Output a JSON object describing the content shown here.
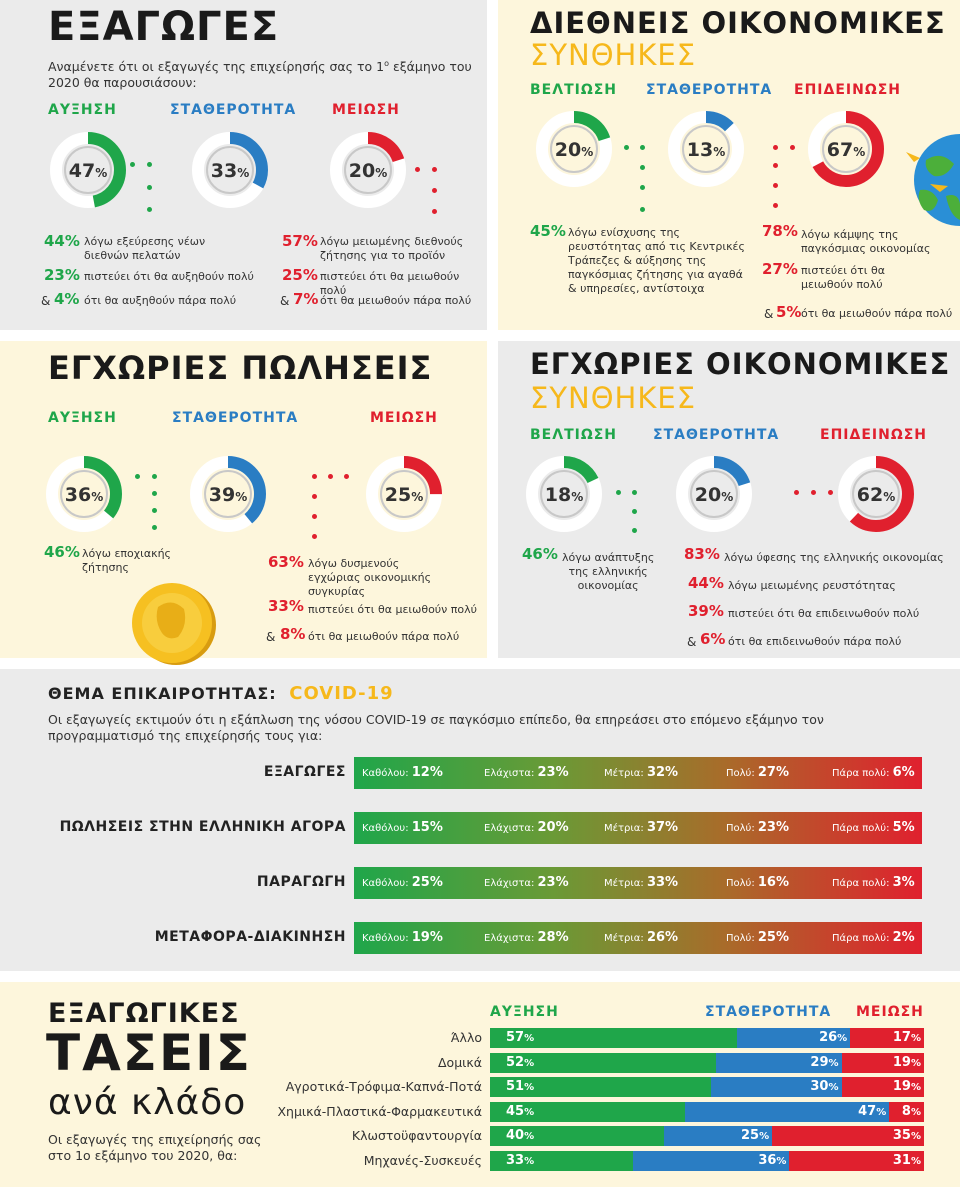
{
  "exports": {
    "title": "ΕΞΑΓΩΓΕΣ",
    "subtitle_line1": "Αναμένετε ότι οι εξαγωγές της επιχείρησής σας το 1",
    "subtitle_sup": "ο",
    "subtitle_line1b": " εξάμηνο του",
    "subtitle_line2": "2020 θα παρουσιάσουν:",
    "cats": [
      {
        "label": "ΑΥΞΗΣΗ",
        "value": "47",
        "pct": 47,
        "color": "#1fa64a"
      },
      {
        "label": "ΣΤΑΘΕΡΟΤΗΤΑ",
        "value": "33",
        "pct": 33,
        "color": "#2a7dc3"
      },
      {
        "label": "ΜΕΙΩΣΗ",
        "value": "20",
        "pct": 20,
        "color": "#e0202e"
      }
    ],
    "left_notes": [
      {
        "pct": "44%",
        "text1": "λόγω εξεύρεσης νέων",
        "text2": "διεθνών πελατών"
      },
      {
        "pct": "23%",
        "text1": "πιστεύει ότι θα αυξηθούν πολύ",
        "text2": ""
      },
      {
        "pct": "4%",
        "amp": "&",
        "text1": "ότι θα αυξηθούν πάρα πολύ",
        "text2": ""
      }
    ],
    "right_notes": [
      {
        "pct": "57%",
        "text1": "λόγω μειωμένης διεθνούς",
        "text2": "ζήτησης για το προϊόν"
      },
      {
        "pct": "25%",
        "text1": "πιστεύει ότι θα μειωθούν πολύ",
        "text2": ""
      },
      {
        "pct": "7%",
        "amp": "&",
        "text1": "ότι θα μειωθούν πάρα πολύ",
        "text2": ""
      }
    ]
  },
  "intl": {
    "title": "ΔΙΕΘΝΕΙΣ ΟΙΚΟΝΟΜΙΚΕΣ",
    "title2": "ΣΥΝΘΗΚΕΣ",
    "cats": [
      {
        "label": "ΒΕΛΤΙΩΣΗ",
        "value": "20",
        "pct": 20,
        "color": "#1fa64a"
      },
      {
        "label": "ΣΤΑΘΕΡΟΤΗΤΑ",
        "value": "13",
        "pct": 13,
        "color": "#2a7dc3"
      },
      {
        "label": "ΕΠΙΔΕΙΝΩΣΗ",
        "value": "67",
        "pct": 67,
        "color": "#e0202e"
      }
    ],
    "left_note": {
      "pct": "45%",
      "lines": [
        "λόγω ενίσχυσης της",
        "ρευστότητας από τις Κεντρικές",
        "Τράπεζες & αύξησης της",
        "παγκόσμιας ζήτησης για αγαθά",
        "& υπηρεσίες, αντίστοιχα"
      ]
    },
    "right_notes": [
      {
        "pct": "78%",
        "text1": "λόγω κάμψης της",
        "text2": "παγκόσμιας οικονομίας"
      },
      {
        "pct": "27%",
        "text1": "πιστεύει ότι θα",
        "text2": "μειωθούν πολύ"
      },
      {
        "pct": "5%",
        "amp": "&",
        "text1": "ότι θα μειωθούν πάρα πολύ",
        "text2": ""
      }
    ]
  },
  "domestic": {
    "title": "ΕΓΧΩΡΙΕΣ ΠΩΛΗΣΕΙΣ",
    "cats": [
      {
        "label": "ΑΥΞΗΣΗ",
        "value": "36",
        "pct": 36,
        "color": "#1fa64a"
      },
      {
        "label": "ΣΤΑΘΕΡΟΤΗΤΑ",
        "value": "39",
        "pct": 39,
        "color": "#2a7dc3"
      },
      {
        "label": "ΜΕΙΩΣΗ",
        "value": "25",
        "pct": 25,
        "color": "#e0202e"
      }
    ],
    "left_note": {
      "pct": "46%",
      "text1": "λόγω εποχιακής",
      "text2": "ζήτησης"
    },
    "right_notes": [
      {
        "pct": "63%",
        "text1": "λόγω δυσμενούς",
        "text2": "εγχώριας οικονομικής συγκυρίας"
      },
      {
        "pct": "33%",
        "text1": "πιστεύει ότι θα μειωθούν πολύ",
        "text2": ""
      },
      {
        "pct": "8%",
        "amp": "&",
        "text1": "ότι θα μειωθούν πάρα πολύ",
        "text2": ""
      }
    ]
  },
  "domestic_econ": {
    "title": "ΕΓΧΩΡΙΕΣ ΟΙΚΟΝΟΜΙΚΕΣ",
    "title2": "ΣΥΝΘΗΚΕΣ",
    "cats": [
      {
        "label": "ΒΕΛΤΙΩΣΗ",
        "value": "18",
        "pct": 18,
        "color": "#1fa64a"
      },
      {
        "label": "ΣΤΑΘΕΡΟΤΗΤΑ",
        "value": "20",
        "pct": 20,
        "color": "#2a7dc3"
      },
      {
        "label": "ΕΠΙΔΕΙΝΩΣΗ",
        "value": "62",
        "pct": 62,
        "color": "#e0202e"
      }
    ],
    "left_note": {
      "pct": "46%",
      "lines": [
        "λόγω ανάπτυξης",
        "της ελληνικής",
        "οικονομίας"
      ]
    },
    "right_notes": [
      {
        "pct": "83%",
        "text1": "λόγω ύφεσης της ελληνικής οικονομίας"
      },
      {
        "pct": "44%",
        "text1": "λόγω μειωμένης ρευστότητας"
      },
      {
        "pct": "39%",
        "text1": "πιστεύει ότι θα επιδεινωθούν πολύ"
      },
      {
        "pct": "6%",
        "amp": "&",
        "text1": "ότι θα επιδεινωθούν πάρα πολύ"
      }
    ]
  },
  "covid": {
    "heading": "ΘΕΜΑ ΕΠΙΚΑΙΡΟΤΗΤΑΣ:",
    "heading2": "COVID-19",
    "desc1": "Οι εξαγωγείς εκτιμούν ότι η εξάπλωση της νόσου COVID-19 σε παγκόσμιο επίπεδο, θα επηρεάσει στο επόμενο εξάμηνο τον",
    "desc2": "προγραμματισμό της επιχείρησής τους για:",
    "levels": [
      "Καθόλου:",
      "Ελάχιστα:",
      "Μέτρια:",
      "Πολύ:",
      "Πάρα πολύ:"
    ]
  },
  "branches": {
    "title1": "ΕΞΑΓΩΓΙΚΕΣ",
    "title2": "ΤΑΣΕΙΣ",
    "title3": "ανά κλάδο",
    "desc1": "Οι εξαγωγές της επιχείρησής σας",
    "desc2": "στο 1ο εξάμηνο του 2020, θα:",
    "legend": [
      "ΑΥΞΗΣΗ",
      "ΣΤΑΘΕΡΟΤΗΤΑ",
      "ΜΕΙΩΣΗ"
    ]
  },
  "chart_data": [
    {
      "type": "bar",
      "title": "COVID-19",
      "categories": [
        "ΕΞΑΓΩΓΕΣ",
        "ΠΩΛΗΣΕΙΣ ΣΤΗΝ ΕΛΛΗΝΙΚΗ ΑΓΟΡΑ",
        "ΠΑΡΑΓΩΓΗ",
        "ΜΕΤΑΦΟΡΑ-ΔΙΑΚΙΝΗΣΗ"
      ],
      "series": [
        {
          "name": "Καθόλου",
          "values": [
            12,
            15,
            25,
            19
          ]
        },
        {
          "name": "Ελάχιστα",
          "values": [
            23,
            20,
            23,
            28
          ]
        },
        {
          "name": "Μέτρια",
          "values": [
            32,
            37,
            33,
            26
          ]
        },
        {
          "name": "Πολύ",
          "values": [
            27,
            23,
            16,
            25
          ]
        },
        {
          "name": "Πάρα πολύ",
          "values": [
            6,
            5,
            3,
            2
          ]
        }
      ],
      "unit": "%"
    },
    {
      "type": "bar",
      "title": "ΕΞΑΓΩΓΙΚΕΣ ΤΑΣΕΙΣ ανά κλάδο",
      "categories": [
        "Άλλο",
        "Δομικά",
        "Αγροτικά-Τρόφιμα-Καπνά-Ποτά",
        "Χημικά-Πλαστικά-Φαρμακευτικά",
        "Κλωστοϋφαντουργία",
        "Μηχανές-Συσκευές"
      ],
      "series": [
        {
          "name": "ΑΥΞΗΣΗ",
          "values": [
            57,
            52,
            51,
            45,
            40,
            33
          ],
          "color": "#1fa64a"
        },
        {
          "name": "ΣΤΑΘΕΡΟΤΗΤΑ",
          "values": [
            26,
            29,
            30,
            47,
            25,
            36
          ],
          "color": "#2a7dc3"
        },
        {
          "name": "ΜΕΙΩΣΗ",
          "values": [
            17,
            19,
            19,
            8,
            35,
            31
          ],
          "color": "#e0202e"
        }
      ],
      "unit": "%"
    }
  ]
}
